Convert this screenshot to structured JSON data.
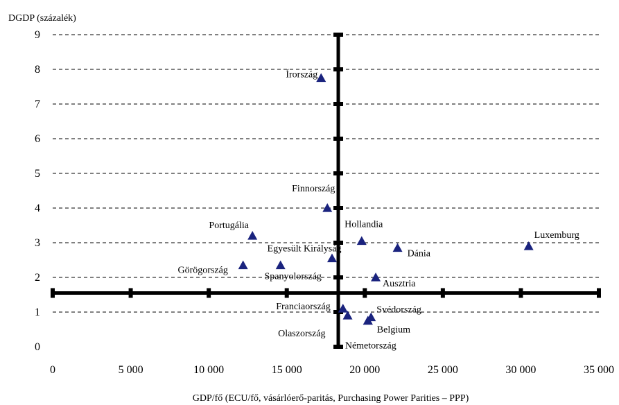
{
  "chart_data": {
    "type": "scatter",
    "ylabel": "DGDP (százalék)",
    "xlabel": "GDP/fő (ECU/fő, vásárlóerő-paritás, Purchasing Power Parities – PPP)",
    "xlim": [
      0,
      35000
    ],
    "ylim": [
      0,
      9
    ],
    "x_ticks": [
      0,
      5000,
      10000,
      15000,
      20000,
      25000,
      30000,
      35000
    ],
    "x_tick_labels": [
      "0",
      "5 000",
      "10 000",
      "15 000",
      "20 000",
      "25 000",
      "30 000",
      "35 000"
    ],
    "y_ticks": [
      0,
      1,
      2,
      3,
      4,
      5,
      6,
      7,
      8,
      9
    ],
    "y_tick_labels": [
      "0",
      "1",
      "2",
      "3",
      "4",
      "5",
      "6",
      "7",
      "8",
      "9"
    ],
    "grid": "horizontal dashed",
    "marker_color": "#1a237e",
    "divider_x": 18300,
    "divider_y": 1.55,
    "points": [
      {
        "label": "Írország",
        "x": 17200,
        "y": 7.75
      },
      {
        "label": "Finnország",
        "x": 17600,
        "y": 4.0
      },
      {
        "label": "Portugália",
        "x": 12800,
        "y": 3.2
      },
      {
        "label": "Hollandia",
        "x": 19800,
        "y": 3.05
      },
      {
        "label": "Luxemburg",
        "x": 30500,
        "y": 2.9
      },
      {
        "label": "Dánia",
        "x": 22100,
        "y": 2.85
      },
      {
        "label": "Egyesült Királyság",
        "x": 17900,
        "y": 2.55
      },
      {
        "label": "Görögország",
        "x": 12200,
        "y": 2.35
      },
      {
        "label": "Spanyolország",
        "x": 14600,
        "y": 2.35
      },
      {
        "label": "Ausztria",
        "x": 20700,
        "y": 2.0
      },
      {
        "label": "Franciaország",
        "x": 18600,
        "y": 1.1
      },
      {
        "label": "Svédország",
        "x": 20400,
        "y": 0.85
      },
      {
        "label": "Olaszország",
        "x": 18900,
        "y": 0.9
      },
      {
        "label": "Belgium",
        "x": 20200,
        "y": 0.75
      },
      {
        "label": "Németország",
        "x": 20200,
        "y": 0.75
      }
    ]
  }
}
